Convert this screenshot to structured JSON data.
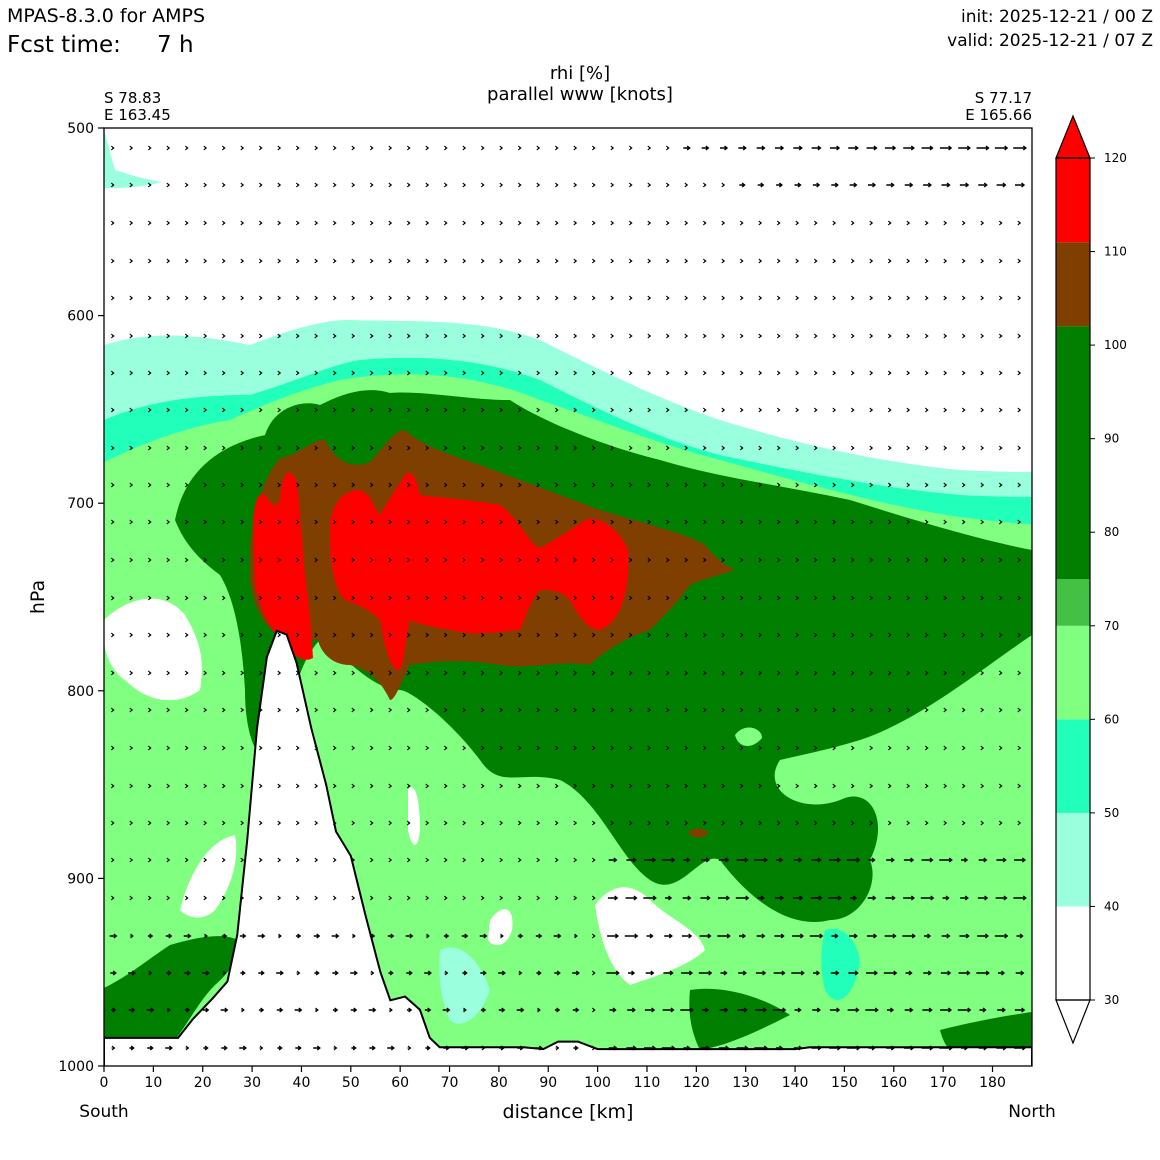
{
  "header": {
    "model": "MPAS-8.3.0 for AMPS",
    "fcst_label": "Fcst time:",
    "fcst_value": "7 h",
    "init": "init: 2025-12-21 / 00 Z",
    "valid": "valid: 2025-12-21 / 07 Z"
  },
  "chart_data": {
    "type": "heatmap",
    "title": "rhi [%]",
    "subtitle": "parallel www [knots]",
    "xlabel": "distance [km]",
    "ylabel": "hPa",
    "xlim": [
      0,
      188
    ],
    "ylim": [
      1000,
      500
    ],
    "x_ticks": [
      0,
      10,
      20,
      30,
      40,
      50,
      60,
      70,
      80,
      90,
      100,
      110,
      120,
      130,
      140,
      150,
      160,
      170,
      180
    ],
    "y_ticks": [
      500,
      600,
      700,
      800,
      900,
      1000
    ],
    "left_end": {
      "lat": "S 78.83",
      "lon": "E 163.45",
      "label": "South"
    },
    "right_end": {
      "lat": "S 77.17",
      "lon": "E 165.66",
      "label": "North"
    },
    "colorbar": {
      "ticks": [
        30,
        40,
        50,
        60,
        70,
        80,
        90,
        100,
        110,
        120
      ],
      "levels": [
        {
          "from": 30,
          "to": 40,
          "color": "#ffffff"
        },
        {
          "from": 40,
          "to": 50,
          "color": "#99ffdd"
        },
        {
          "from": 50,
          "to": 60,
          "color": "#22ffbb"
        },
        {
          "from": 60,
          "to": 70,
          "color": "#80ff80"
        },
        {
          "from": 70,
          "to": 75,
          "color": "#44c044"
        },
        {
          "from": 75,
          "to": 102,
          "color": "#007f00"
        },
        {
          "from": 102,
          "to": 111,
          "color": "#7f3f00"
        },
        {
          "from": 111,
          "to": 120,
          "color": "#ff0000"
        }
      ],
      "extend": "both"
    },
    "terrain_profile": [
      [
        0,
        985
      ],
      [
        15,
        985
      ],
      [
        18,
        975
      ],
      [
        22,
        964
      ],
      [
        25,
        955
      ],
      [
        27,
        930
      ],
      [
        29,
        880
      ],
      [
        31,
        820
      ],
      [
        33,
        782
      ],
      [
        35,
        768
      ],
      [
        37,
        770
      ],
      [
        39,
        785
      ],
      [
        42,
        820
      ],
      [
        45,
        850
      ],
      [
        47,
        875
      ],
      [
        50,
        888
      ],
      [
        53,
        920
      ],
      [
        56,
        950
      ],
      [
        58,
        965
      ],
      [
        61,
        963
      ],
      [
        64,
        970
      ],
      [
        66,
        985
      ],
      [
        68,
        990
      ],
      [
        75,
        990
      ],
      [
        85,
        990
      ],
      [
        89,
        991
      ],
      [
        92,
        987
      ],
      [
        96,
        987
      ],
      [
        100,
        991
      ],
      [
        140,
        991
      ],
      [
        143,
        990
      ],
      [
        188,
        990
      ]
    ]
  }
}
